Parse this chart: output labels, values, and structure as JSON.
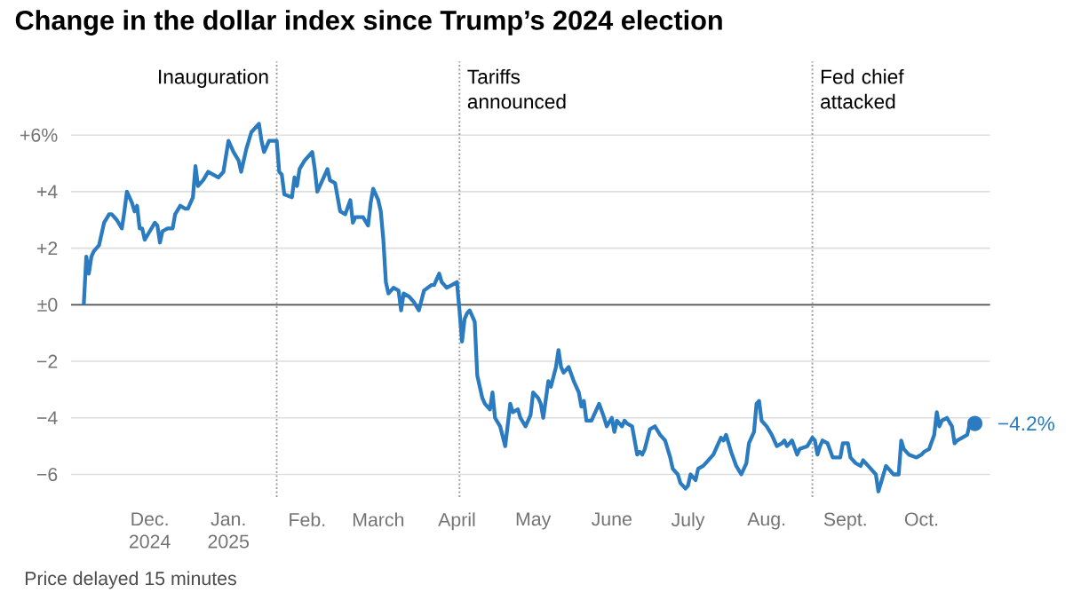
{
  "chart_data": {
    "type": "line",
    "title": "Change in the dollar index since Trump’s 2024 election",
    "x": [
      "2024-11-05",
      "2024-11-06",
      "2024-11-07",
      "2024-11-08",
      "2024-11-09",
      "2024-11-11",
      "2024-11-13",
      "2024-11-15",
      "2024-11-16",
      "2024-11-18",
      "2024-11-20",
      "2024-11-21",
      "2024-11-22",
      "2024-11-24",
      "2024-11-25",
      "2024-11-26",
      "2024-11-27",
      "2024-11-28",
      "2024-11-29",
      "2024-12-01",
      "2024-12-03",
      "2024-12-04",
      "2024-12-05",
      "2024-12-06",
      "2024-12-08",
      "2024-12-10",
      "2024-12-11",
      "2024-12-13",
      "2024-12-15",
      "2024-12-16",
      "2024-12-18",
      "2024-12-19",
      "2024-12-20",
      "2024-12-22",
      "2024-12-24",
      "2024-12-26",
      "2024-12-28",
      "2024-12-30",
      "2025-01-01",
      "2025-01-03",
      "2025-01-05",
      "2025-01-06",
      "2025-01-08",
      "2025-01-10",
      "2025-01-13",
      "2025-01-14",
      "2025-01-15",
      "2025-01-17",
      "2025-01-20",
      "2025-01-21",
      "2025-01-22",
      "2025-01-23",
      "2025-01-26",
      "2025-01-27",
      "2025-01-28",
      "2025-01-29",
      "2025-01-31",
      "2025-02-03",
      "2025-02-04",
      "2025-02-05",
      "2025-02-07",
      "2025-02-09",
      "2025-02-10",
      "2025-02-12",
      "2025-02-14",
      "2025-02-16",
      "2025-02-18",
      "2025-02-19",
      "2025-02-20",
      "2025-02-22",
      "2025-02-23",
      "2025-02-25",
      "2025-02-26",
      "2025-02-27",
      "2025-03-01",
      "2025-03-02",
      "2025-03-03",
      "2025-03-04",
      "2025-03-05",
      "2025-03-07",
      "2025-03-09",
      "2025-03-10",
      "2025-03-11",
      "2025-03-13",
      "2025-03-15",
      "2025-03-17",
      "2025-03-19",
      "2025-03-22",
      "2025-03-23",
      "2025-03-24",
      "2025-03-25",
      "2025-03-26",
      "2025-03-28",
      "2025-03-30",
      "2025-04-01",
      "2025-04-02",
      "2025-04-03",
      "2025-04-04",
      "2025-04-05",
      "2025-04-06",
      "2025-04-08",
      "2025-04-09",
      "2025-04-11",
      "2025-04-12",
      "2025-04-14",
      "2025-04-15",
      "2025-04-16",
      "2025-04-18",
      "2025-04-20",
      "2025-04-22",
      "2025-04-23",
      "2025-04-25",
      "2025-04-26",
      "2025-04-28",
      "2025-04-30",
      "2025-05-01",
      "2025-05-03",
      "2025-05-04",
      "2025-05-05",
      "2025-05-07",
      "2025-05-08",
      "2025-05-10",
      "2025-05-11",
      "2025-05-12",
      "2025-05-13",
      "2025-05-15",
      "2025-05-17",
      "2025-05-19",
      "2025-05-20",
      "2025-05-21",
      "2025-05-22",
      "2025-05-24",
      "2025-05-26",
      "2025-05-27",
      "2025-05-29",
      "2025-05-30",
      "2025-06-01",
      "2025-06-02",
      "2025-06-03",
      "2025-06-05",
      "2025-06-06",
      "2025-06-07",
      "2025-06-09",
      "2025-06-11",
      "2025-06-12",
      "2025-06-13",
      "2025-06-14",
      "2025-06-16",
      "2025-06-18",
      "2025-06-20",
      "2025-06-22",
      "2025-06-24",
      "2025-06-25",
      "2025-06-27",
      "2025-06-28",
      "2025-06-30",
      "2025-07-01",
      "2025-07-02",
      "2025-07-04",
      "2025-07-05",
      "2025-07-07",
      "2025-07-09",
      "2025-07-11",
      "2025-07-13",
      "2025-07-14",
      "2025-07-15",
      "2025-07-16",
      "2025-07-17",
      "2025-07-18",
      "2025-07-20",
      "2025-07-22",
      "2025-07-24",
      "2025-07-25",
      "2025-07-27",
      "2025-07-28",
      "2025-07-29",
      "2025-07-30",
      "2025-08-01",
      "2025-08-03",
      "2025-08-05",
      "2025-08-07",
      "2025-08-08",
      "2025-08-09",
      "2025-08-11",
      "2025-08-13",
      "2025-08-14",
      "2025-08-17",
      "2025-08-19",
      "2025-08-20",
      "2025-08-21",
      "2025-08-22",
      "2025-08-23",
      "2025-08-25",
      "2025-08-27",
      "2025-08-29",
      "2025-08-30",
      "2025-08-31",
      "2025-09-02",
      "2025-09-03",
      "2025-09-05",
      "2025-09-07",
      "2025-09-08",
      "2025-09-10",
      "2025-09-11",
      "2025-09-13",
      "2025-09-14",
      "2025-09-15",
      "2025-09-17",
      "2025-09-18",
      "2025-09-20",
      "2025-09-22",
      "2025-09-23",
      "2025-09-24",
      "2025-09-26",
      "2025-09-29",
      "2025-10-01",
      "2025-10-02",
      "2025-10-04",
      "2025-10-06",
      "2025-10-07",
      "2025-10-08",
      "2025-10-09",
      "2025-10-11",
      "2025-10-13",
      "2025-10-14",
      "2025-10-15",
      "2025-10-17",
      "2025-10-19",
      "2025-10-20",
      "2025-10-22"
    ],
    "series": [
      {
        "color": "#2a7bbf",
        "values": [
          0,
          1.7,
          1.1,
          1.7,
          1.9,
          2.1,
          2.9,
          3.2,
          3.2,
          3.0,
          2.7,
          3.3,
          4.0,
          3.6,
          3.3,
          3.5,
          2.7,
          2.7,
          2.3,
          2.6,
          2.9,
          2.8,
          2.2,
          2.6,
          2.7,
          2.7,
          3.2,
          3.5,
          3.4,
          3.4,
          3.8,
          4.9,
          4.2,
          4.4,
          4.7,
          4.6,
          4.5,
          4.7,
          5.8,
          5.4,
          5.1,
          4.7,
          5.5,
          6.1,
          6.4,
          5.8,
          5.4,
          5.8,
          5.8,
          4.7,
          4.6,
          3.9,
          3.8,
          4.5,
          4.2,
          4.8,
          5.1,
          5.4,
          4.8,
          4.0,
          4.4,
          4.8,
          4.4,
          4.3,
          3.3,
          3.2,
          3.7,
          2.9,
          3.1,
          3.1,
          3.1,
          2.8,
          3.6,
          4.1,
          3.7,
          3.3,
          2.3,
          0.8,
          0.4,
          0.6,
          0.5,
          -0.2,
          0.4,
          0.3,
          0.1,
          -0.2,
          0.5,
          0.7,
          0.7,
          0.9,
          1.1,
          0.8,
          0.6,
          0.7,
          0.8,
          -0.2,
          -1.3,
          -0.5,
          -0.3,
          -0.2,
          -0.6,
          -2.5,
          -3.3,
          -3.5,
          -3.7,
          -3.1,
          -4.0,
          -4.3,
          -5.0,
          -3.5,
          -3.8,
          -3.7,
          -4.0,
          -4.3,
          -3.9,
          -3.1,
          -3.3,
          -3.5,
          -4.0,
          -2.7,
          -2.9,
          -2.2,
          -1.6,
          -2.2,
          -2.4,
          -2.2,
          -2.7,
          -3.1,
          -3.6,
          -3.4,
          -4.1,
          -4.1,
          -3.7,
          -3.5,
          -4.0,
          -4.3,
          -4.0,
          -4.5,
          -4.1,
          -4.3,
          -4.1,
          -4.2,
          -4.3,
          -5.3,
          -5.2,
          -5.3,
          -5.1,
          -4.4,
          -4.3,
          -4.6,
          -4.8,
          -5.4,
          -5.8,
          -6.0,
          -6.3,
          -6.5,
          -6.4,
          -6.0,
          -6.2,
          -5.8,
          -5.7,
          -5.5,
          -5.3,
          -4.9,
          -4.7,
          -4.8,
          -4.6,
          -4.9,
          -5.2,
          -5.7,
          -6.0,
          -5.6,
          -4.9,
          -4.5,
          -3.5,
          -3.4,
          -4.1,
          -4.3,
          -4.6,
          -5.0,
          -4.9,
          -4.8,
          -5.0,
          -4.8,
          -5.3,
          -5.1,
          -5.0,
          -4.7,
          -4.8,
          -5.3,
          -5.0,
          -4.8,
          -4.9,
          -5.4,
          -5.4,
          -5.4,
          -4.9,
          -4.9,
          -5.4,
          -5.6,
          -5.7,
          -5.5,
          -5.7,
          -5.8,
          -6.0,
          -6.6,
          -6.3,
          -5.7,
          -5.8,
          -6.0,
          -6.0,
          -4.8,
          -5.1,
          -5.3,
          -5.4,
          -5.3,
          -5.2,
          -5.1,
          -4.6,
          -3.8,
          -4.3,
          -4.1,
          -4.0,
          -4.3,
          -4.9,
          -4.8,
          -4.7,
          -4.6,
          -4.2,
          -4.2
        ]
      }
    ],
    "xlim": [
      "2024-10-31",
      "2025-10-28"
    ],
    "xticks": [
      {
        "value": "2024-12-01",
        "label": "Dec. 2024"
      },
      {
        "value": "2025-01-01",
        "label": "Jan. 2025"
      },
      {
        "value": "2025-02-01",
        "label": "Feb."
      },
      {
        "value": "2025-03-01",
        "label": "March"
      },
      {
        "value": "2025-04-01",
        "label": "April"
      },
      {
        "value": "2025-05-01",
        "label": "May"
      },
      {
        "value": "2025-06-01",
        "label": "June"
      },
      {
        "value": "2025-07-01",
        "label": "July"
      },
      {
        "value": "2025-08-01",
        "label": "Aug."
      },
      {
        "value": "2025-09-01",
        "label": "Sept."
      },
      {
        "value": "2025-10-01",
        "label": "Oct."
      }
    ],
    "ylim": [
      -6.8,
      8.6
    ],
    "yticks": [
      {
        "value": -6,
        "label": "−6"
      },
      {
        "value": -4,
        "label": "−4"
      },
      {
        "value": -2,
        "label": "−2"
      },
      {
        "value": 0,
        "label": "±0"
      },
      {
        "value": 2,
        "label": "+2"
      },
      {
        "value": 4,
        "label": "+4"
      },
      {
        "value": 6,
        "label": "+6%"
      }
    ],
    "grid": "y",
    "ref_lines": [
      {
        "axis": "y",
        "value": 0,
        "color": "#555555"
      },
      {
        "axis": "x",
        "value": "2025-01-20",
        "label": "Inauguration",
        "color": "#999999",
        "line_style": "dotted"
      },
      {
        "axis": "x",
        "value": "2025-04-02",
        "label": "Tariffs announced",
        "color": "#999999",
        "line_style": "dotted"
      },
      {
        "axis": "x",
        "value": "2025-08-19",
        "label": "Fed chief attacked",
        "color": "#999999",
        "line_style": "dotted"
      }
    ],
    "annotations": [
      {
        "text": "−4.2%",
        "x": "2025-10-22",
        "y": -4.2
      },
      "Price delayed 15 minutes"
    ]
  }
}
